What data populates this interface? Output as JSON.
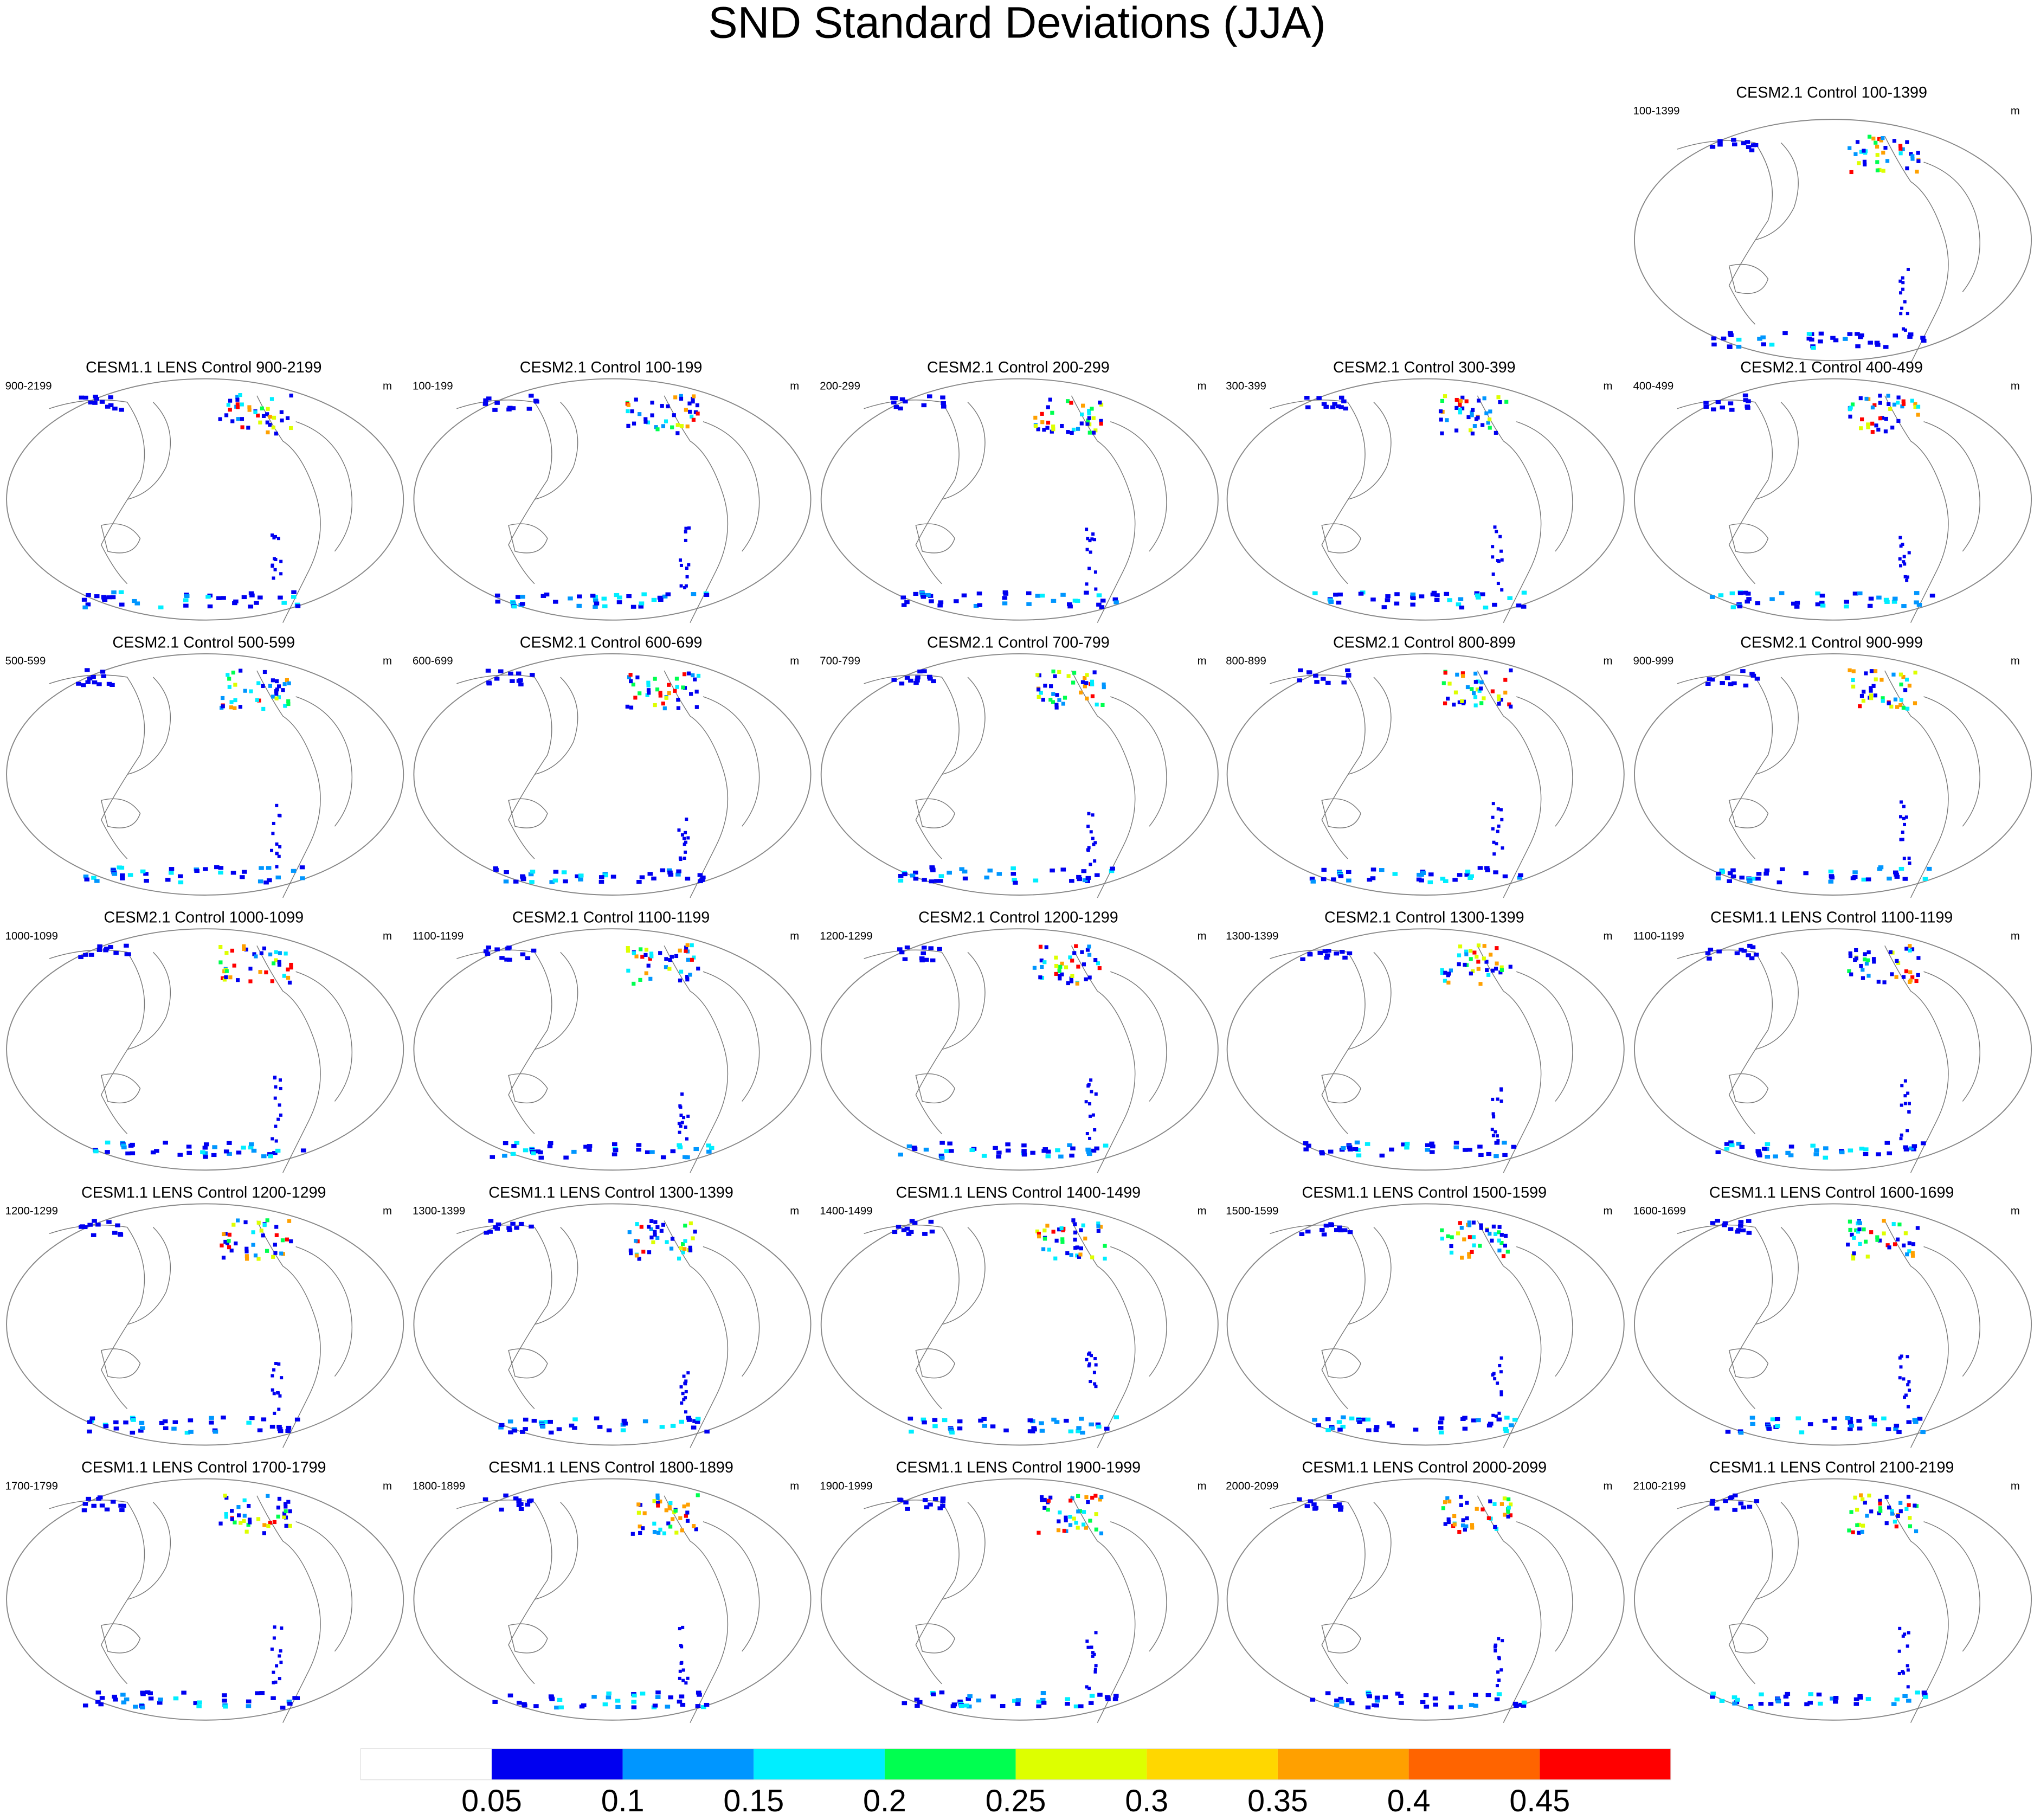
{
  "title": "SND Standard Deviations (JJA)",
  "panels": [
    {
      "title": "CESM2.1 Control 100-1399",
      "left": "100-1399",
      "units": "m"
    },
    {
      "title": "CESM1.1 LENS Control 900-2199",
      "left": "900-2199",
      "units": "m"
    },
    {
      "title": "CESM2.1 Control 100-199",
      "left": "100-199",
      "units": "m"
    },
    {
      "title": "CESM2.1 Control 200-299",
      "left": "200-299",
      "units": "m"
    },
    {
      "title": "CESM2.1 Control 300-399",
      "left": "300-399",
      "units": "m"
    },
    {
      "title": "CESM2.1 Control 400-499",
      "left": "400-499",
      "units": "m"
    },
    {
      "title": "CESM2.1 Control 500-599",
      "left": "500-599",
      "units": "m"
    },
    {
      "title": "CESM2.1 Control 600-699",
      "left": "600-699",
      "units": "m"
    },
    {
      "title": "CESM2.1 Control 700-799",
      "left": "700-799",
      "units": "m"
    },
    {
      "title": "CESM2.1 Control 800-899",
      "left": "800-899",
      "units": "m"
    },
    {
      "title": "CESM2.1 Control 900-999",
      "left": "900-999",
      "units": "m"
    },
    {
      "title": "CESM2.1 Control 1000-1099",
      "left": "1000-1099",
      "units": "m"
    },
    {
      "title": "CESM2.1 Control 1100-1199",
      "left": "1100-1199",
      "units": "m"
    },
    {
      "title": "CESM2.1 Control 1200-1299",
      "left": "1200-1299",
      "units": "m"
    },
    {
      "title": "CESM2.1 Control 1300-1399",
      "left": "1300-1399",
      "units": "m"
    },
    {
      "title": "CESM1.1 LENS Control 1100-1199",
      "left": "1100-1199",
      "units": "m"
    },
    {
      "title": "CESM1.1 LENS Control 1200-1299",
      "left": "1200-1299",
      "units": "m"
    },
    {
      "title": "CESM1.1 LENS Control 1300-1399",
      "left": "1300-1399",
      "units": "m"
    },
    {
      "title": "CESM1.1 LENS Control 1400-1499",
      "left": "1400-1499",
      "units": "m"
    },
    {
      "title": "CESM1.1 LENS Control 1500-1599",
      "left": "1500-1599",
      "units": "m"
    },
    {
      "title": "CESM1.1 LENS Control 1600-1699",
      "left": "1600-1699",
      "units": "m"
    },
    {
      "title": "CESM1.1 LENS Control 1700-1799",
      "left": "1700-1799",
      "units": "m"
    },
    {
      "title": "CESM1.1 LENS Control 1800-1899",
      "left": "1800-1899",
      "units": "m"
    },
    {
      "title": "CESM1.1 LENS Control 1900-1999",
      "left": "1900-1999",
      "units": "m"
    },
    {
      "title": "CESM1.1 LENS Control 2000-2099",
      "left": "2000-2099",
      "units": "m"
    },
    {
      "title": "CESM1.1 LENS Control 2100-2199",
      "left": "2100-2199",
      "units": "m"
    }
  ],
  "colorbar": {
    "colors": [
      "#ffffff",
      "#0000f0",
      "#0096ff",
      "#00eeff",
      "#00ff50",
      "#ddff00",
      "#ffd700",
      "#ffa000",
      "#ff6400",
      "#ff0000"
    ],
    "labels": [
      0.05,
      0.1,
      0.15,
      0.2,
      0.25,
      0.3,
      0.35,
      0.4,
      0.45
    ]
  }
}
